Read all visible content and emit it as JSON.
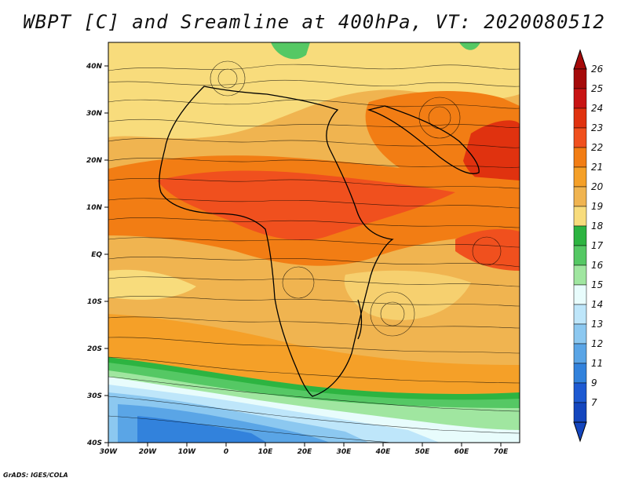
{
  "title": "WBPT [C] and Sreamline at 400hPa, VT: 2020080512",
  "footer": "GrADS: IGES/COLA",
  "map": {
    "lat_labels": [
      "40N",
      "30N",
      "20N",
      "10N",
      "EQ",
      "10S",
      "20S",
      "30S",
      "40S"
    ],
    "lon_labels": [
      "30W",
      "20W",
      "10W",
      "0",
      "10E",
      "20E",
      "30E",
      "40E",
      "50E",
      "60E",
      "70E"
    ],
    "variable": "Wet-bulb potential temperature",
    "overlay": "streamlines"
  },
  "colorbar": {
    "labels": [
      "26",
      "25",
      "24",
      "23",
      "22",
      "21",
      "20",
      "19",
      "18",
      "17",
      "16",
      "15",
      "14",
      "13",
      "12",
      "11",
      "9",
      "7"
    ],
    "colors": [
      "#a50a0a",
      "#c81414",
      "#e0320f",
      "#f0501e",
      "#f27d14",
      "#f5a028",
      "#f0b450",
      "#f8dc7c",
      "#2db441",
      "#55c864",
      "#a0e6a0",
      "#e8fcfc",
      "#bee6fa",
      "#8cc8f0",
      "#5aa5e6",
      "#3282dc",
      "#1e5ad2",
      "#1446be"
    ]
  }
}
